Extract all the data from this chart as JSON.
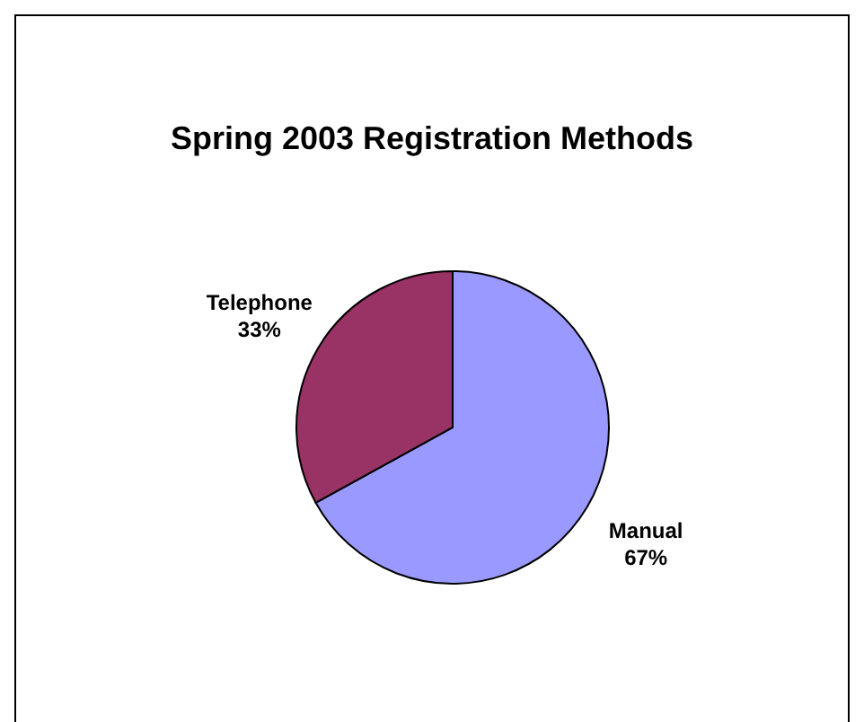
{
  "chart_data": {
    "type": "pie",
    "title": "Spring 2003 Registration Methods",
    "categories": [
      "Manual",
      "Telephone"
    ],
    "values": [
      67,
      33
    ],
    "colors": [
      "#9999ff",
      "#993366"
    ],
    "value_labels": [
      "67%",
      "33%"
    ],
    "legend": false
  }
}
